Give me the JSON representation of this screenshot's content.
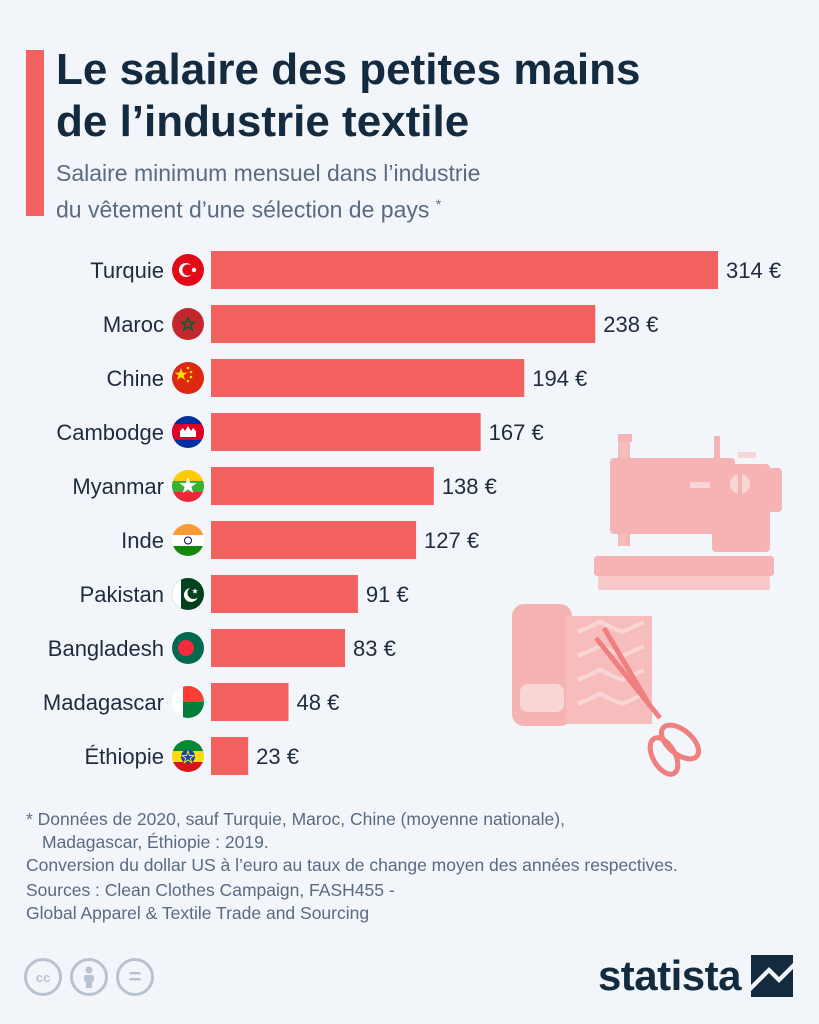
{
  "header": {
    "title_line1": "Le salaire des petites mains",
    "title_line2": "de l’industrie textile",
    "subtitle_line1": "Salaire minimum mensuel dans l’industrie",
    "subtitle_line2": "du vêtement d’une sélection de pays",
    "subtitle_mark": "*"
  },
  "colors": {
    "bar": "#f46161",
    "accent": "#f46161",
    "title": "#142a3e",
    "muted": "#5a6b80",
    "background": "#f2f5f9"
  },
  "chart_data": {
    "type": "bar",
    "orientation": "horizontal",
    "categories": [
      "Turquie",
      "Maroc",
      "Chine",
      "Cambodge",
      "Myanmar",
      "Inde",
      "Pakistan",
      "Bangladesh",
      "Madagascar",
      "Éthiopie"
    ],
    "values": [
      314,
      238,
      194,
      167,
      138,
      127,
      91,
      83,
      48,
      23
    ],
    "labels": [
      "314 €",
      "238 €",
      "194 €",
      "167 €",
      "138 €",
      "127 €",
      "91 €",
      "83 €",
      "48 €",
      "23 €"
    ],
    "unit": "€",
    "flags": [
      "flag-turkey-icon",
      "flag-morocco-icon",
      "flag-china-icon",
      "flag-cambodia-icon",
      "flag-myanmar-icon",
      "flag-india-icon",
      "flag-pakistan-icon",
      "flag-bangladesh-icon",
      "flag-madagascar-icon",
      "flag-ethiopia-icon"
    ],
    "xlim": [
      0,
      314
    ],
    "grid": false,
    "title": "Le salaire des petites mains de l’industrie textile",
    "xlabel": "",
    "ylabel": ""
  },
  "illustrations": [
    "sewing-machine-icon",
    "fabric-scissors-icon"
  ],
  "footnotes": {
    "note_line1": "* Données de 2020, sauf Turquie, Maroc, Chine (moyenne nationale),",
    "note_line2": "Madagascar, Éthiopie : 2019.",
    "conversion": "Conversion du dollar US à l’euro au taux de change moyen des années respectives.",
    "sources_line1": "Sources : Clean Clothes Campaign, FASH455 -",
    "sources_line2": "Global Apparel & Textile Trade and Sourcing"
  },
  "license": {
    "cc": "cc",
    "by_icon": "person-icon",
    "nd": "="
  },
  "logo": {
    "text": "statista"
  }
}
